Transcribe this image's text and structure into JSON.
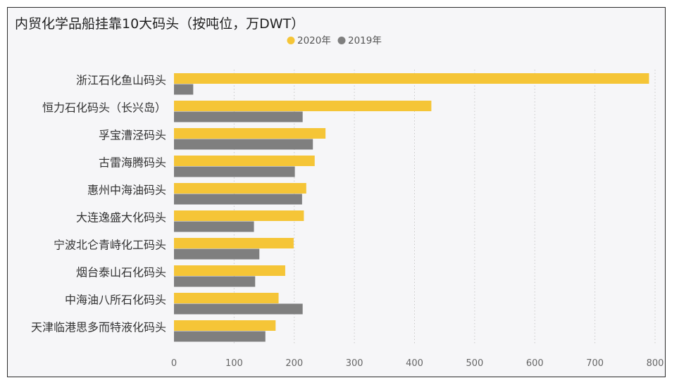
{
  "chart_data": {
    "type": "bar",
    "orientation": "horizontal",
    "title": "内贸化学品船挂靠10大码头（按吨位，万DWT）",
    "categories": [
      "浙江石化鱼山码头",
      "恒力石化码头（长兴岛）",
      "孚宝漕泾码头",
      "古雷海腾码头",
      "惠州中海油码头",
      "大连逸盛大化码头",
      "宁波北仑青峙化工码头",
      "烟台泰山石化码头",
      "中海油八所石化码头",
      "天津临港思多而特液化码头"
    ],
    "series": [
      {
        "name": "2020年",
        "color": "#f5c537",
        "values": [
          790,
          428,
          252,
          234,
          220,
          216,
          199,
          185,
          174,
          169
        ]
      },
      {
        "name": "2019年",
        "color": "#7f7f7f",
        "values": [
          32,
          214,
          231,
          201,
          213,
          133,
          142,
          135,
          214,
          152
        ]
      }
    ],
    "xlim": [
      0,
      800
    ],
    "xticks": [
      "0",
      "100",
      "200",
      "300",
      "400",
      "500",
      "600",
      "700",
      "800"
    ],
    "grid": true,
    "legend_position": "top-center"
  }
}
